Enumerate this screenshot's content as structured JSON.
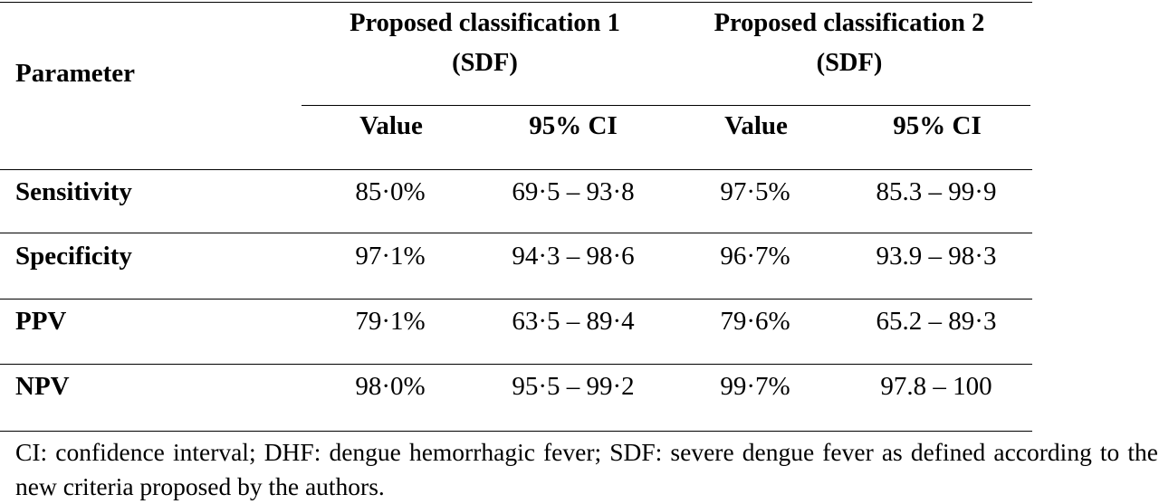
{
  "table": {
    "param_header": "Parameter",
    "groups": [
      {
        "line1": "Proposed classification 1",
        "line2": "(SDF)",
        "value_label": "Value",
        "ci_label": "95% CI"
      },
      {
        "line1": "Proposed classification 2",
        "line2": "(SDF)",
        "value_label": "Value",
        "ci_label": "95% CI"
      }
    ],
    "rows": [
      {
        "param": "Sensitivity",
        "v1": "85·0%",
        "ci1": "69·5 – 93·8",
        "v2": "97·5%",
        "ci2": "85.3 – 99·9"
      },
      {
        "param": "Specificity",
        "v1": "97·1%",
        "ci1": "94·3 – 98·6",
        "v2": "96·7%",
        "ci2": "93.9 – 98·3"
      },
      {
        "param": "PPV",
        "v1": "79·1%",
        "ci1": "63·5 – 89·4",
        "v2": "79·6%",
        "ci2": "65.2 – 89·3"
      },
      {
        "param": "NPV",
        "v1": "98·0%",
        "ci1": "95·5 – 99·2",
        "v2": "99·7%",
        "ci2": "97.8 – 100"
      }
    ]
  },
  "footnote": "CI: confidence interval; DHF: dengue hemorrhagic fever; SDF: severe dengue fever as defined according to the new criteria proposed by the authors."
}
